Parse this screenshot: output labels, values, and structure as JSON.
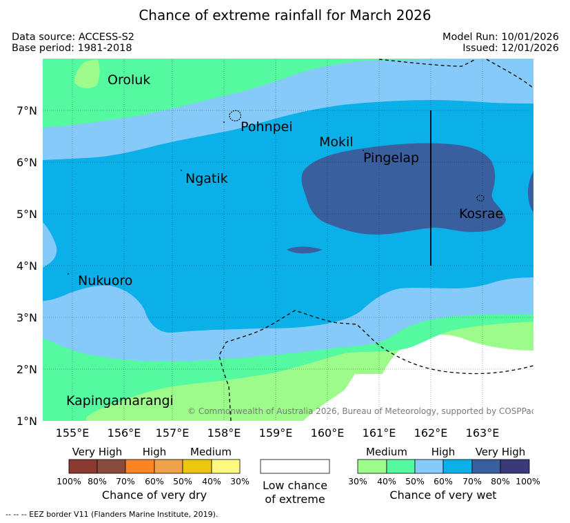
{
  "title": "Chance of extreme rainfall for March 2026",
  "data_source": "Data source: ACCESS-S2",
  "base_period": "Base period: 1981-2018",
  "model_run": "Model Run: 10/01/2026",
  "issued": "Issued: 12/01/2026",
  "map": {
    "lat_labels": [
      "7°N",
      "6°N",
      "5°N",
      "4°N",
      "3°N",
      "2°N",
      "1°N"
    ],
    "lon_labels": [
      "155°E",
      "156°E",
      "157°E",
      "158°E",
      "159°E",
      "160°E",
      "161°E",
      "162°E",
      "163°E"
    ],
    "places": [
      "Oroluk",
      "Pohnpei",
      "Mokil",
      "Pingelap",
      "Ngatik",
      "Kosrae",
      "Nukuoro",
      "Kapingamarangi"
    ],
    "copyright": "© Commonwealth of Australia 2026, Bureau of Meteorology, supported by COSPPac",
    "colors": {
      "very_wet_dark": "#3a5f9e",
      "high_70": "#0bb0e8",
      "high_60": "#86cafa",
      "medium_50": "#55f9a0",
      "medium_40": "#9dfb8c",
      "low": "#ffffff"
    }
  },
  "legend": {
    "dry": {
      "headers": [
        "Very High",
        "High",
        "Medium"
      ],
      "ticks": [
        "100%",
        "80%",
        "70%",
        "60%",
        "50%",
        "40%",
        "30%"
      ],
      "colors": [
        "#8b3a30",
        "#8a4c3a",
        "#fb8424",
        "#f0a24b",
        "#ebc80f",
        "#fdf880"
      ],
      "title": "Chance of very dry"
    },
    "low": {
      "line1": "Low chance",
      "line2": "of extreme"
    },
    "wet": {
      "headers": [
        "Medium",
        "High",
        "Very High"
      ],
      "ticks": [
        "30%",
        "40%",
        "50%",
        "60%",
        "70%",
        "80%",
        "100%"
      ],
      "colors": [
        "#9dfb8c",
        "#55f9a0",
        "#86cafa",
        "#0bb0e8",
        "#3a5f9e",
        "#3a3a7a"
      ],
      "title": "Chance of very wet"
    }
  },
  "footnote": "-- -- -- EEZ border V11 (Flanders Marine Institute, 2019)."
}
